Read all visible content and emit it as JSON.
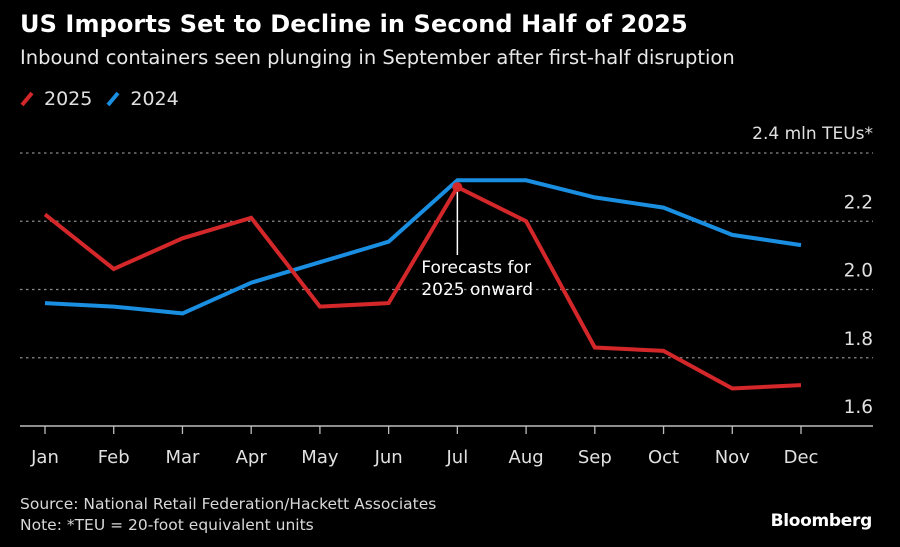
{
  "header": {
    "title": "US Imports Set to Decline in Second Half of 2025",
    "subtitle": "Inbound containers seen plunging in September after first-half disruption"
  },
  "legend": [
    {
      "label": "2025",
      "color": "#d3272a"
    },
    {
      "label": "2024",
      "color": "#1a8ee0"
    }
  ],
  "chart_data": {
    "type": "line",
    "title": "US Imports Set to Decline in Second Half of 2025",
    "subtitle": "Inbound containers seen plunging in September after first-half disruption",
    "xlabel": "",
    "ylabel": "mln TEUs",
    "unit_label": "2.4 mln TEUs*",
    "categories": [
      "Jan",
      "Feb",
      "Mar",
      "Apr",
      "May",
      "Jun",
      "Jul",
      "Aug",
      "Sep",
      "Oct",
      "Nov",
      "Dec"
    ],
    "y_ticks": [
      1.6,
      1.8,
      2.0,
      2.2,
      2.4
    ],
    "y_tick_labels": [
      "1.6",
      "1.8",
      "2.0",
      "2.2",
      "2.4 mln TEUs*"
    ],
    "ylim": [
      1.6,
      2.4
    ],
    "grid": true,
    "grid_style": "dotted",
    "y_axis_side": "right",
    "legend_position": "top-left",
    "series": [
      {
        "name": "2025",
        "color": "#d3272a",
        "values": [
          2.22,
          2.06,
          2.15,
          2.21,
          1.95,
          1.96,
          2.3,
          2.2,
          1.83,
          1.82,
          1.71,
          1.72
        ]
      },
      {
        "name": "2024",
        "color": "#1a8ee0",
        "values": [
          1.96,
          1.95,
          1.93,
          2.02,
          2.08,
          2.14,
          2.32,
          2.32,
          2.27,
          2.24,
          2.16,
          2.13
        ]
      }
    ],
    "annotations": [
      {
        "text_lines": [
          "Forecasts for",
          "2025 onward"
        ],
        "series": "2025",
        "category": "Jul"
      }
    ]
  },
  "footer": {
    "source": "Source: National Retail Federation/Hackett Associates",
    "note": "Note: *TEU = 20-foot equivalent units",
    "brand": "Bloomberg"
  }
}
